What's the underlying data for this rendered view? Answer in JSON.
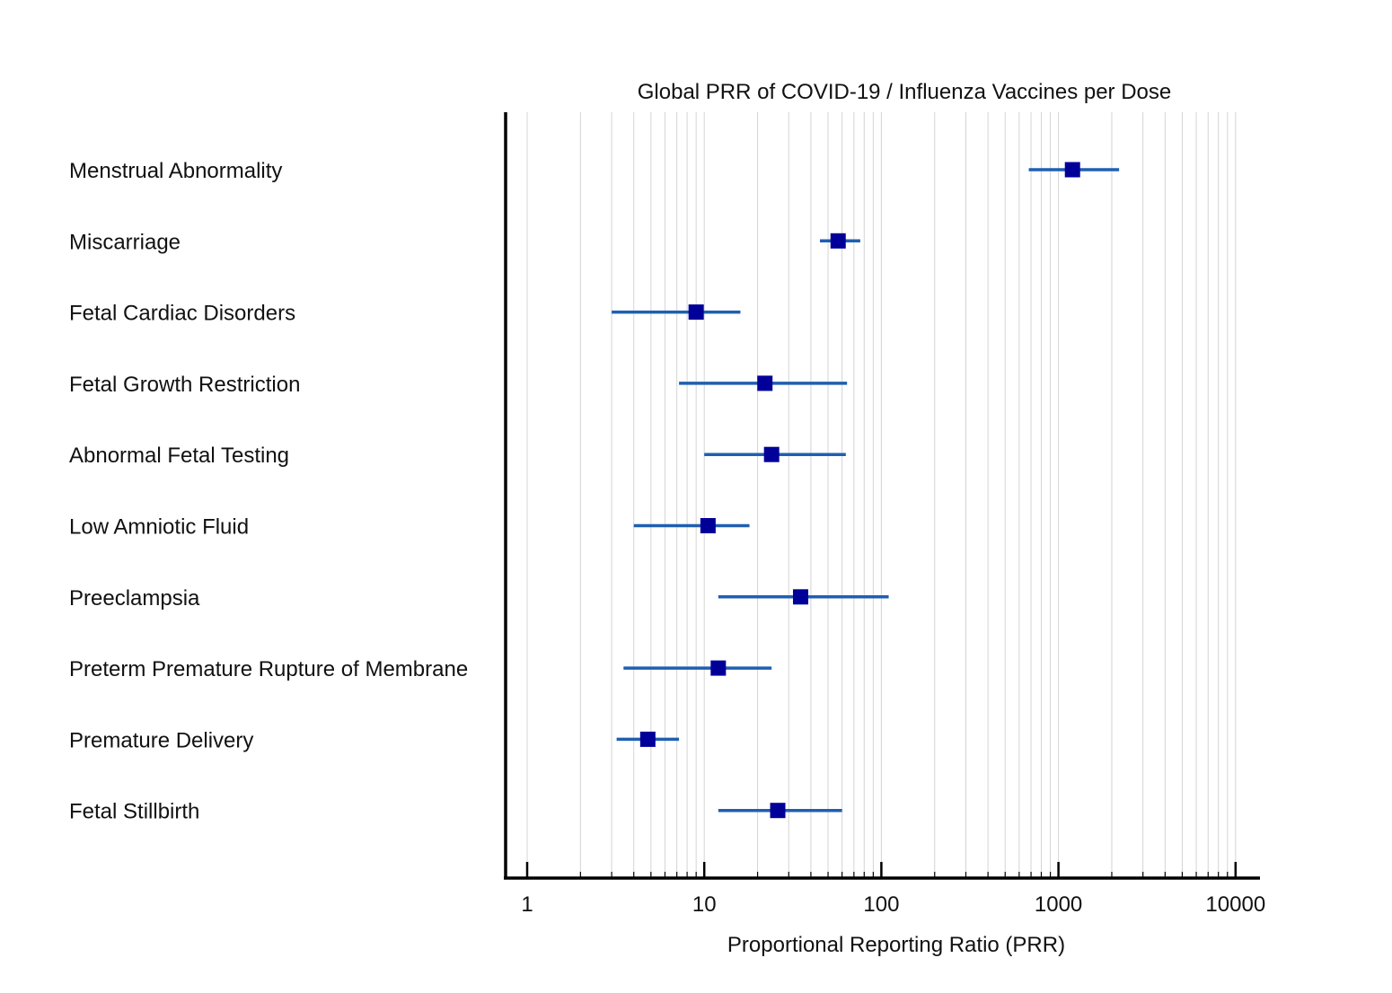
{
  "chart_data": {
    "type": "forest",
    "title": "Global PRR of COVID-19 / Influenza Vaccines per Dose",
    "xlabel": "Proportional Reporting Ratio (PRR)",
    "ylabel": "",
    "x_scale": "log",
    "xlim": [
      0.88,
      12500
    ],
    "x_ticks": [
      1,
      10,
      100,
      1000,
      10000
    ],
    "x_tick_labels": [
      "1",
      "10",
      "100",
      "1000",
      "10000"
    ],
    "grid": "vertical minor and major",
    "colors": {
      "marker": "#000099",
      "ci_line": "#1f5fb0",
      "grid": "#d4d4d4",
      "axis": "#000000"
    },
    "categories": [
      "Menstrual Abnormality",
      "Miscarriage",
      "Fetal Cardiac Disorders",
      "Fetal Growth Restriction",
      "Abnormal Fetal Testing",
      "Low Amniotic Fluid",
      "Preeclampsia",
      "Preterm Premature Rupture of Membrane",
      "Premature Delivery",
      "Fetal Stillbirth"
    ],
    "estimates": [
      1200,
      57,
      9,
      22,
      24,
      10.5,
      35,
      12,
      4.8,
      26
    ],
    "ci_lower": [
      680,
      45,
      3,
      7.2,
      10,
      4,
      12,
      3.5,
      3.2,
      12
    ],
    "ci_upper": [
      2200,
      76,
      16,
      64,
      63,
      18,
      110,
      24,
      7.2,
      60
    ]
  }
}
